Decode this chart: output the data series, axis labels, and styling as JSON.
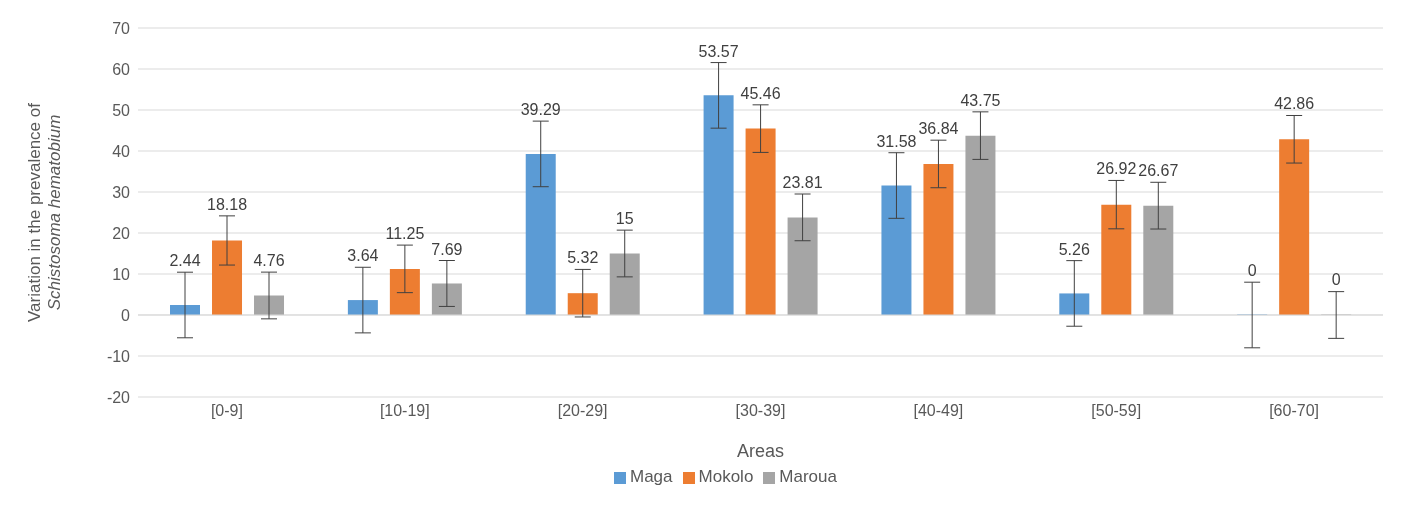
{
  "chart_data": {
    "type": "bar",
    "xlabel": "Areas",
    "ylabel": "Variation in the prevalence of Schistosoma hematobium",
    "categories": [
      "[0-9]",
      "[10-19]",
      "[20-29]",
      "[30-39]",
      "[40-49]",
      "[50-59]",
      "[60-70]"
    ],
    "series": [
      {
        "name": "Maga",
        "color": "#5b9bd5",
        "values": [
          2.44,
          3.64,
          39.29,
          53.57,
          31.58,
          5.26,
          0
        ],
        "errors": [
          8,
          8,
          8,
          8,
          8,
          8,
          8
        ]
      },
      {
        "name": "Mokolo",
        "color": "#ed7d31",
        "values": [
          18.18,
          11.25,
          5.32,
          45.46,
          36.84,
          26.92,
          42.86
        ],
        "errors": [
          6,
          5.8,
          5.8,
          5.8,
          5.8,
          5.9,
          5.8
        ]
      },
      {
        "name": "Maroua",
        "color": "#a5a5a5",
        "values": [
          4.76,
          7.69,
          15,
          23.81,
          43.75,
          26.67,
          0
        ],
        "errors": [
          5.7,
          5.6,
          5.7,
          5.7,
          5.8,
          5.7,
          5.7
        ]
      }
    ],
    "ylim": [
      -20,
      70
    ],
    "yticks": [
      -20,
      -10,
      0,
      10,
      20,
      30,
      40,
      50,
      60,
      70
    ],
    "grid": "y",
    "legend": "bottom",
    "data_labels": true
  }
}
